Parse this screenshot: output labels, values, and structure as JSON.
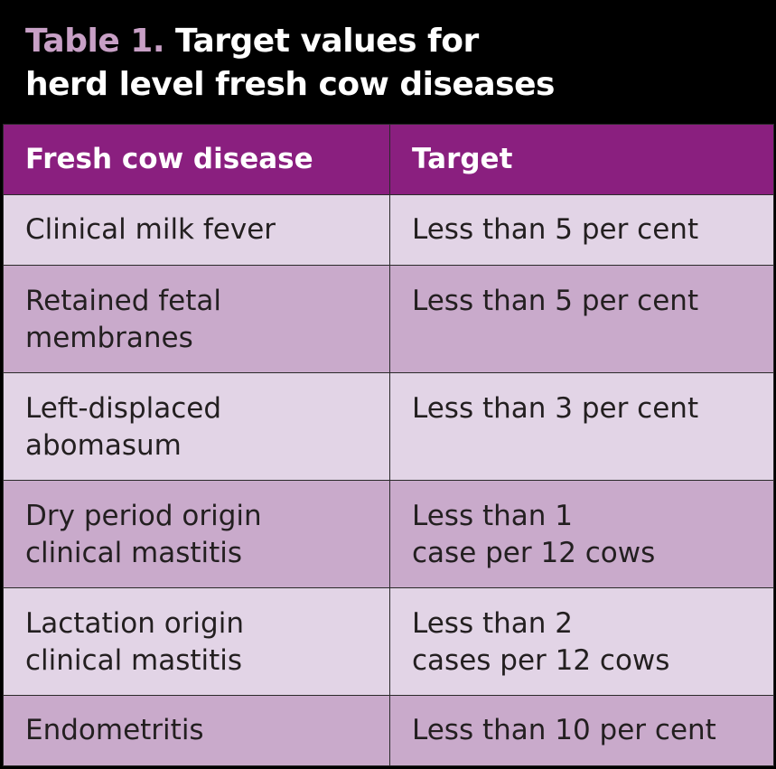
{
  "title": {
    "label": "Table 1.",
    "line1": "Target values for",
    "line2": "herd level fresh cow diseases"
  },
  "table": {
    "headers": [
      "Fresh cow disease",
      "Target"
    ],
    "rows": [
      {
        "disease": "Clinical milk fever",
        "target": "Less than 5 per cent"
      },
      {
        "disease": "Retained fetal\nmembranes",
        "target": "Less than 5 per cent"
      },
      {
        "disease": "Left-displaced\nabomasum",
        "target": "Less than 3 per cent"
      },
      {
        "disease": "Dry period origin\nclinical mastitis",
        "target": "Less than 1\ncase per 12 cows"
      },
      {
        "disease": "Lactation origin\nclinical mastitis",
        "target": "Less than 2\ncases per 12 cows"
      },
      {
        "disease": "Endometritis",
        "target": "Less than 10 per cent"
      }
    ]
  },
  "colors": {
    "background": "#000000",
    "title_label": "#c8a0c6",
    "header_bg": "#8a1f7f",
    "row_light": "#e2d4e6",
    "row_dark": "#c9aacb"
  }
}
